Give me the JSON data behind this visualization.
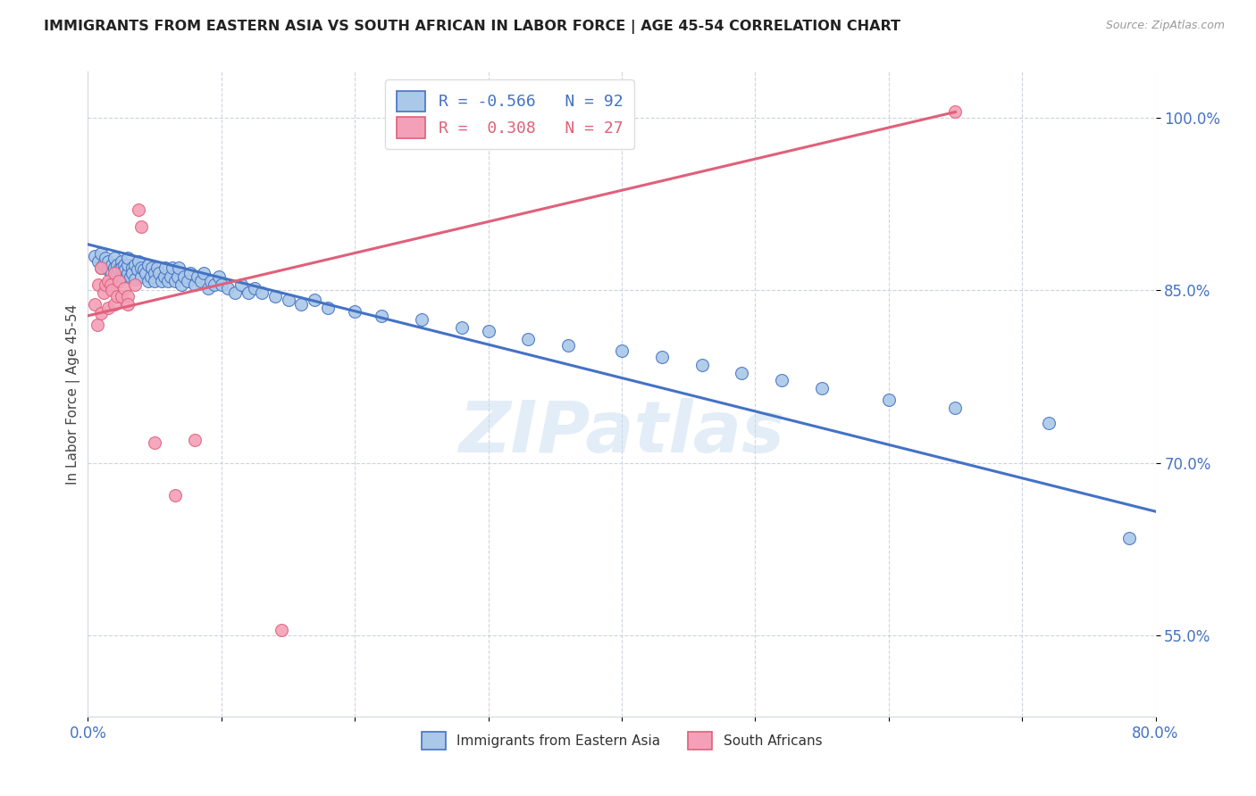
{
  "title": "IMMIGRANTS FROM EASTERN ASIA VS SOUTH AFRICAN IN LABOR FORCE | AGE 45-54 CORRELATION CHART",
  "source": "Source: ZipAtlas.com",
  "ylabel": "In Labor Force | Age 45-54",
  "x_tick_labels_bottom": [
    "0.0%",
    "",
    "",
    "",
    "",
    "",
    "",
    "",
    "80.0%"
  ],
  "y_tick_labels": [
    "55.0%",
    "70.0%",
    "85.0%",
    "100.0%"
  ],
  "x_min": 0.0,
  "x_max": 0.8,
  "y_min": 0.48,
  "y_max": 1.04,
  "blue_R": "-0.566",
  "blue_N": "92",
  "pink_R": "0.308",
  "pink_N": "27",
  "legend_label_blue": "Immigrants from Eastern Asia",
  "legend_label_pink": "South Africans",
  "blue_color": "#aac8e8",
  "blue_line_color": "#4472c4",
  "pink_color": "#f4a0b8",
  "pink_line_color": "#e0607a",
  "watermark_text": "ZIPatlas",
  "blue_scatter_x": [
    0.005,
    0.008,
    0.01,
    0.01,
    0.012,
    0.013,
    0.015,
    0.015,
    0.018,
    0.018,
    0.02,
    0.02,
    0.022,
    0.022,
    0.023,
    0.025,
    0.025,
    0.025,
    0.027,
    0.028,
    0.03,
    0.03,
    0.03,
    0.032,
    0.033,
    0.033,
    0.035,
    0.035,
    0.037,
    0.038,
    0.04,
    0.04,
    0.042,
    0.043,
    0.045,
    0.045,
    0.047,
    0.048,
    0.05,
    0.05,
    0.052,
    0.053,
    0.055,
    0.057,
    0.058,
    0.06,
    0.062,
    0.063,
    0.065,
    0.067,
    0.068,
    0.07,
    0.072,
    0.075,
    0.077,
    0.08,
    0.082,
    0.085,
    0.087,
    0.09,
    0.092,
    0.095,
    0.098,
    0.1,
    0.105,
    0.11,
    0.115,
    0.12,
    0.125,
    0.13,
    0.14,
    0.15,
    0.16,
    0.17,
    0.18,
    0.2,
    0.22,
    0.25,
    0.28,
    0.3,
    0.33,
    0.36,
    0.4,
    0.43,
    0.46,
    0.49,
    0.52,
    0.55,
    0.6,
    0.65,
    0.72,
    0.78
  ],
  "blue_scatter_y": [
    0.88,
    0.875,
    0.87,
    0.882,
    0.873,
    0.878,
    0.868,
    0.875,
    0.872,
    0.865,
    0.87,
    0.878,
    0.865,
    0.872,
    0.868,
    0.875,
    0.862,
    0.87,
    0.872,
    0.868,
    0.865,
    0.872,
    0.878,
    0.862,
    0.87,
    0.865,
    0.872,
    0.86,
    0.868,
    0.875,
    0.862,
    0.87,
    0.868,
    0.865,
    0.872,
    0.858,
    0.862,
    0.87,
    0.865,
    0.858,
    0.87,
    0.865,
    0.858,
    0.862,
    0.87,
    0.858,
    0.862,
    0.87,
    0.858,
    0.862,
    0.87,
    0.855,
    0.862,
    0.858,
    0.865,
    0.855,
    0.862,
    0.858,
    0.865,
    0.852,
    0.858,
    0.855,
    0.862,
    0.855,
    0.852,
    0.848,
    0.855,
    0.848,
    0.852,
    0.848,
    0.845,
    0.842,
    0.838,
    0.842,
    0.835,
    0.832,
    0.828,
    0.825,
    0.818,
    0.815,
    0.808,
    0.802,
    0.798,
    0.792,
    0.785,
    0.778,
    0.772,
    0.765,
    0.755,
    0.748,
    0.735,
    0.635
  ],
  "pink_scatter_x": [
    0.005,
    0.007,
    0.008,
    0.01,
    0.01,
    0.012,
    0.013,
    0.015,
    0.015,
    0.017,
    0.018,
    0.02,
    0.02,
    0.022,
    0.023,
    0.025,
    0.027,
    0.03,
    0.03,
    0.035,
    0.038,
    0.04,
    0.05,
    0.065,
    0.08,
    0.145,
    0.65
  ],
  "pink_scatter_y": [
    0.838,
    0.82,
    0.855,
    0.83,
    0.87,
    0.848,
    0.855,
    0.835,
    0.858,
    0.855,
    0.85,
    0.838,
    0.865,
    0.845,
    0.858,
    0.845,
    0.852,
    0.845,
    0.838,
    0.855,
    0.92,
    0.905,
    0.718,
    0.672,
    0.72,
    0.555,
    1.005
  ],
  "blue_line_x0": 0.0,
  "blue_line_x1": 0.8,
  "blue_line_y0": 0.89,
  "blue_line_y1": 0.658,
  "pink_line_x0": 0.0,
  "pink_line_x1": 0.65,
  "pink_line_y0": 0.828,
  "pink_line_y1": 1.005
}
